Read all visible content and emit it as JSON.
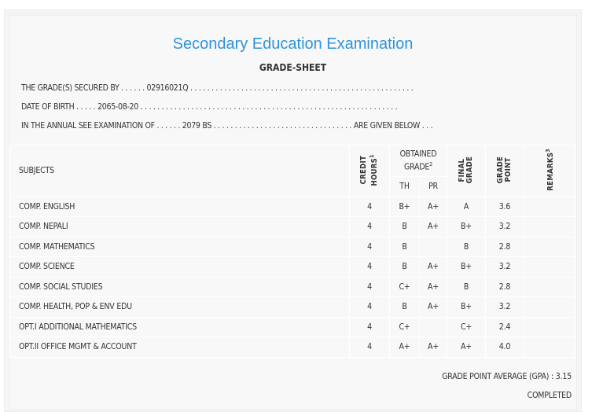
{
  "title": "Secondary Education Examination",
  "subtitle": "GRADE-SHEET",
  "lines": {
    "secured_by": "THE GRADE(S) SECURED BY . . . . . . 02916021Q . . . . . . . . . . . . . . . . . . . . . . . . . . . . . . . . . . . . . . . . . . . . . . . . . . . . .",
    "dob": "DATE OF BIRTH . . . . . 2065-08-20 . . . . . . . . . . . . . . . . . . . . . . . . . . . . . . . . . . . . . . . . . . . . . . . . . . . . . . . . . . . . .",
    "exam": "IN THE ANNUAL SEE EXAMINATION OF . . . . . . 2079 BS . . . . . . . . . . . . . . . . . . . . . . . . . . . . . . . . . ARE GIVEN BELOW . . ."
  },
  "headers": {
    "subjects": "SUBJECTS",
    "credit": "CREDIT HOURS",
    "credit_sup": "1",
    "obtained": "OBTAINED GRADE",
    "obtained_sup": "2",
    "th": "TH",
    "pr": "PR",
    "final": "FINAL GRADE",
    "gp": "GRADE POINT",
    "remarks": "REMARKS",
    "remarks_sup": "3"
  },
  "rows": [
    {
      "subject": "COMP. ENGLISH",
      "credit": "4",
      "th": "B+",
      "pr": "A+",
      "final": "A",
      "gp": "3.6",
      "remarks": ""
    },
    {
      "subject": "COMP. NEPALI",
      "credit": "4",
      "th": "B",
      "pr": "A+",
      "final": "B+",
      "gp": "3.2",
      "remarks": ""
    },
    {
      "subject": "COMP. MATHEMATICS",
      "credit": "4",
      "th": "B",
      "pr": "",
      "final": "B",
      "gp": "2.8",
      "remarks": ""
    },
    {
      "subject": "COMP. SCIENCE",
      "credit": "4",
      "th": "B",
      "pr": "A+",
      "final": "B+",
      "gp": "3.2",
      "remarks": ""
    },
    {
      "subject": "COMP. SOCIAL STUDIES",
      "credit": "4",
      "th": "C+",
      "pr": "A+",
      "final": "B",
      "gp": "2.8",
      "remarks": ""
    },
    {
      "subject": "COMP. HEALTH, POP & ENV EDU",
      "credit": "4",
      "th": "B",
      "pr": "A+",
      "final": "B+",
      "gp": "3.2",
      "remarks": ""
    },
    {
      "subject": "OPT.I ADDITIONAL MATHEMATICS",
      "credit": "4",
      "th": "C+",
      "pr": "",
      "final": "C+",
      "gp": "2.4",
      "remarks": ""
    },
    {
      "subject": "OPT.II OFFICE MGMT & ACCOUNT",
      "credit": "4",
      "th": "A+",
      "pr": "A+",
      "final": "A+",
      "gp": "4.0",
      "remarks": ""
    }
  ],
  "gpa": "GRADE POINT AVERAGE (GPA) : 3.15",
  "status": "COMPLETED"
}
